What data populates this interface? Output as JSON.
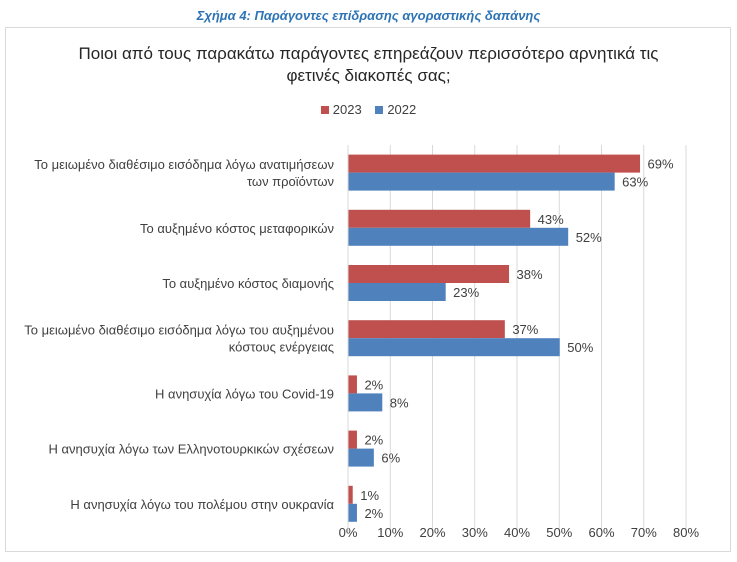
{
  "caption": "Σχήμα 4: Παράγοντες επίδρασης αγοραστικής δαπάνης",
  "chart_data": {
    "type": "bar",
    "orientation": "horizontal",
    "title_lines": [
      "Ποιοι από τους παρακάτω παράγοντες επηρεάζουν περισσότερο αρνητικά τις",
      "φετινές διακοπές σας;"
    ],
    "categories": [
      [
        "Το μειωμένο διαθέσιμο εισόδημα λόγω ανατιμήσεων",
        "των προϊόντων"
      ],
      [
        "Το αυξημένο κόστος μεταφορικών"
      ],
      [
        "Το αυξημένο κόστος διαμονής"
      ],
      [
        "Το μειωμένο διαθέσιμο εισόδημα λόγω του αυξημένου",
        "κόστους ενέργειας"
      ],
      [
        "Η ανησυχία λόγω του Covid-19"
      ],
      [
        "Η ανησυχία λόγω των Ελληνοτουρκικών σχέσεων"
      ],
      [
        "Η ανησυχία λόγω του πολέμου στην ουκρανία"
      ]
    ],
    "series": [
      {
        "name": "2023",
        "color": "#c0504d",
        "values": [
          69,
          43,
          38,
          37,
          2,
          2,
          1
        ]
      },
      {
        "name": "2022",
        "color": "#4f81bd",
        "values": [
          63,
          52,
          23,
          50,
          8,
          6,
          2
        ]
      }
    ],
    "xlim": [
      0,
      80
    ],
    "xticks": [
      0,
      10,
      20,
      30,
      40,
      50,
      60,
      70,
      80
    ],
    "value_suffix": "%",
    "gridlines": true,
    "legend_position": "top"
  }
}
